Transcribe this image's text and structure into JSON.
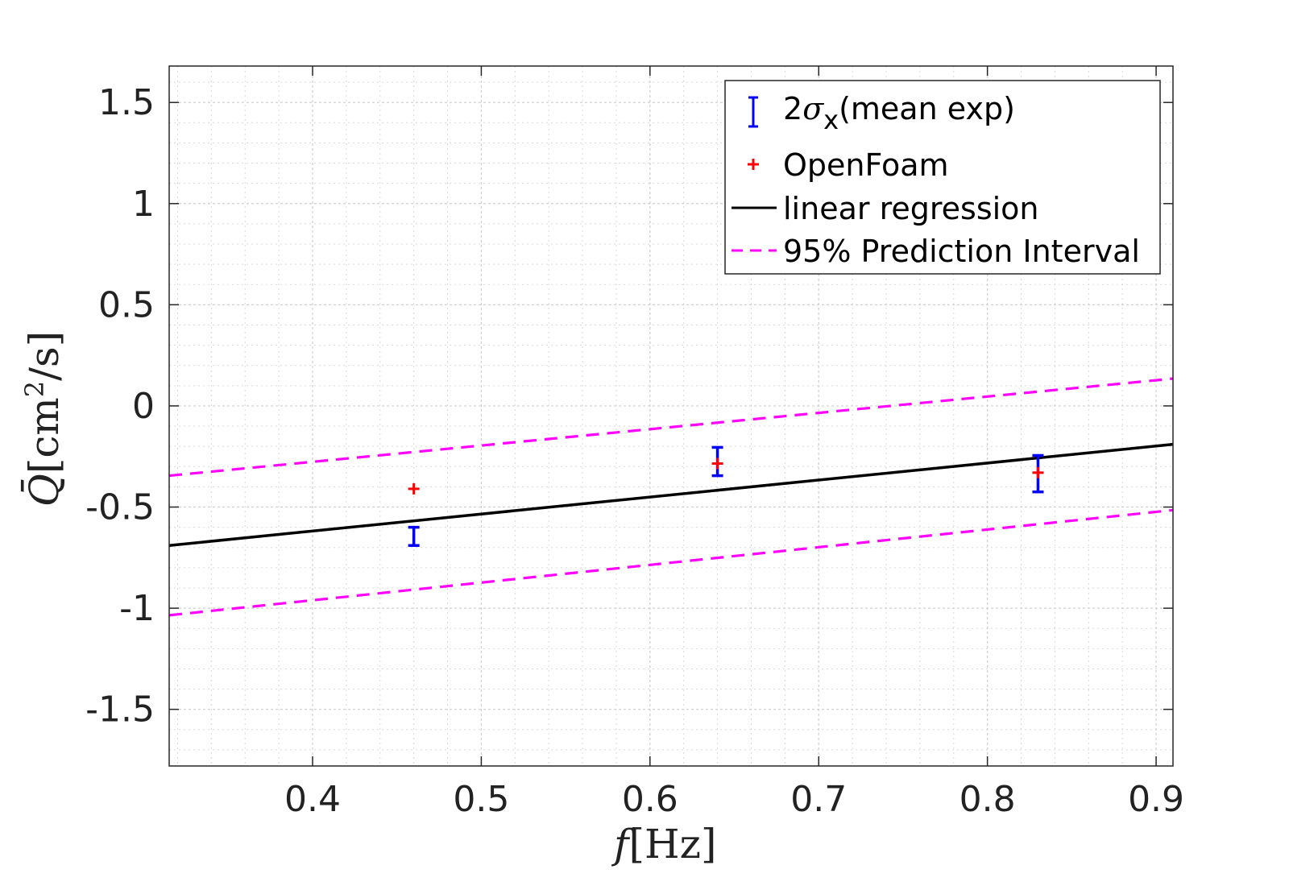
{
  "chart_data": {
    "type": "scatter",
    "xlabel": {
      "symbol": "f",
      "unit": "[Hz]"
    },
    "ylabel": {
      "symbol": "Q̄",
      "unit": "[cm",
      "unit_sup": "2",
      "unit_tail": "/s]"
    },
    "xlim": [
      0.315,
      0.91
    ],
    "ylim": [
      -1.78,
      1.68
    ],
    "xticks": [
      0.4,
      0.5,
      0.6,
      0.7,
      0.8,
      0.9
    ],
    "xtick_labels": [
      "0.4",
      "0.5",
      "0.6",
      "0.7",
      "0.8",
      "0.9"
    ],
    "yticks": [
      1.5,
      1,
      0.5,
      0,
      -0.5,
      -1,
      -1.5
    ],
    "ytick_labels": [
      "1.5",
      "1",
      "0.5",
      "0",
      "-0.5",
      "-1",
      "-1.5"
    ],
    "grid": true,
    "minor_grid": true,
    "legend_position": "top-right",
    "series": [
      {
        "name": "2σx(mean exp)",
        "kind": "errorbar",
        "color": "#0000ff",
        "x": [
          0.46,
          0.64,
          0.83
        ],
        "y": [
          -0.645,
          -0.275,
          -0.335
        ],
        "err": [
          0.045,
          0.07,
          0.09
        ]
      },
      {
        "name": "OpenFoam",
        "kind": "marker",
        "color": "#ff0000",
        "x": [
          0.46,
          0.64,
          0.83
        ],
        "y": [
          -0.41,
          -0.285,
          -0.33
        ]
      },
      {
        "name": "linear regression",
        "kind": "line",
        "color": "#000000",
        "x": [
          0.315,
          0.91
        ],
        "y": [
          -0.69,
          -0.19
        ]
      },
      {
        "name": "95% Prediction Interval",
        "kind": "dashed",
        "color": "#ff00ff",
        "lines": [
          {
            "x": [
              0.315,
              0.91
            ],
            "y": [
              -0.345,
              0.135
            ]
          },
          {
            "x": [
              0.315,
              0.91
            ],
            "y": [
              -1.035,
              -0.515
            ]
          }
        ]
      }
    ],
    "legend": {
      "entries": [
        {
          "prefix": "2",
          "greek": "σ",
          "sub": "x",
          "suffix": "(mean exp)"
        },
        {
          "text": "OpenFoam"
        },
        {
          "text": "linear regression"
        },
        {
          "text": "95% Prediction Interval"
        }
      ]
    }
  }
}
